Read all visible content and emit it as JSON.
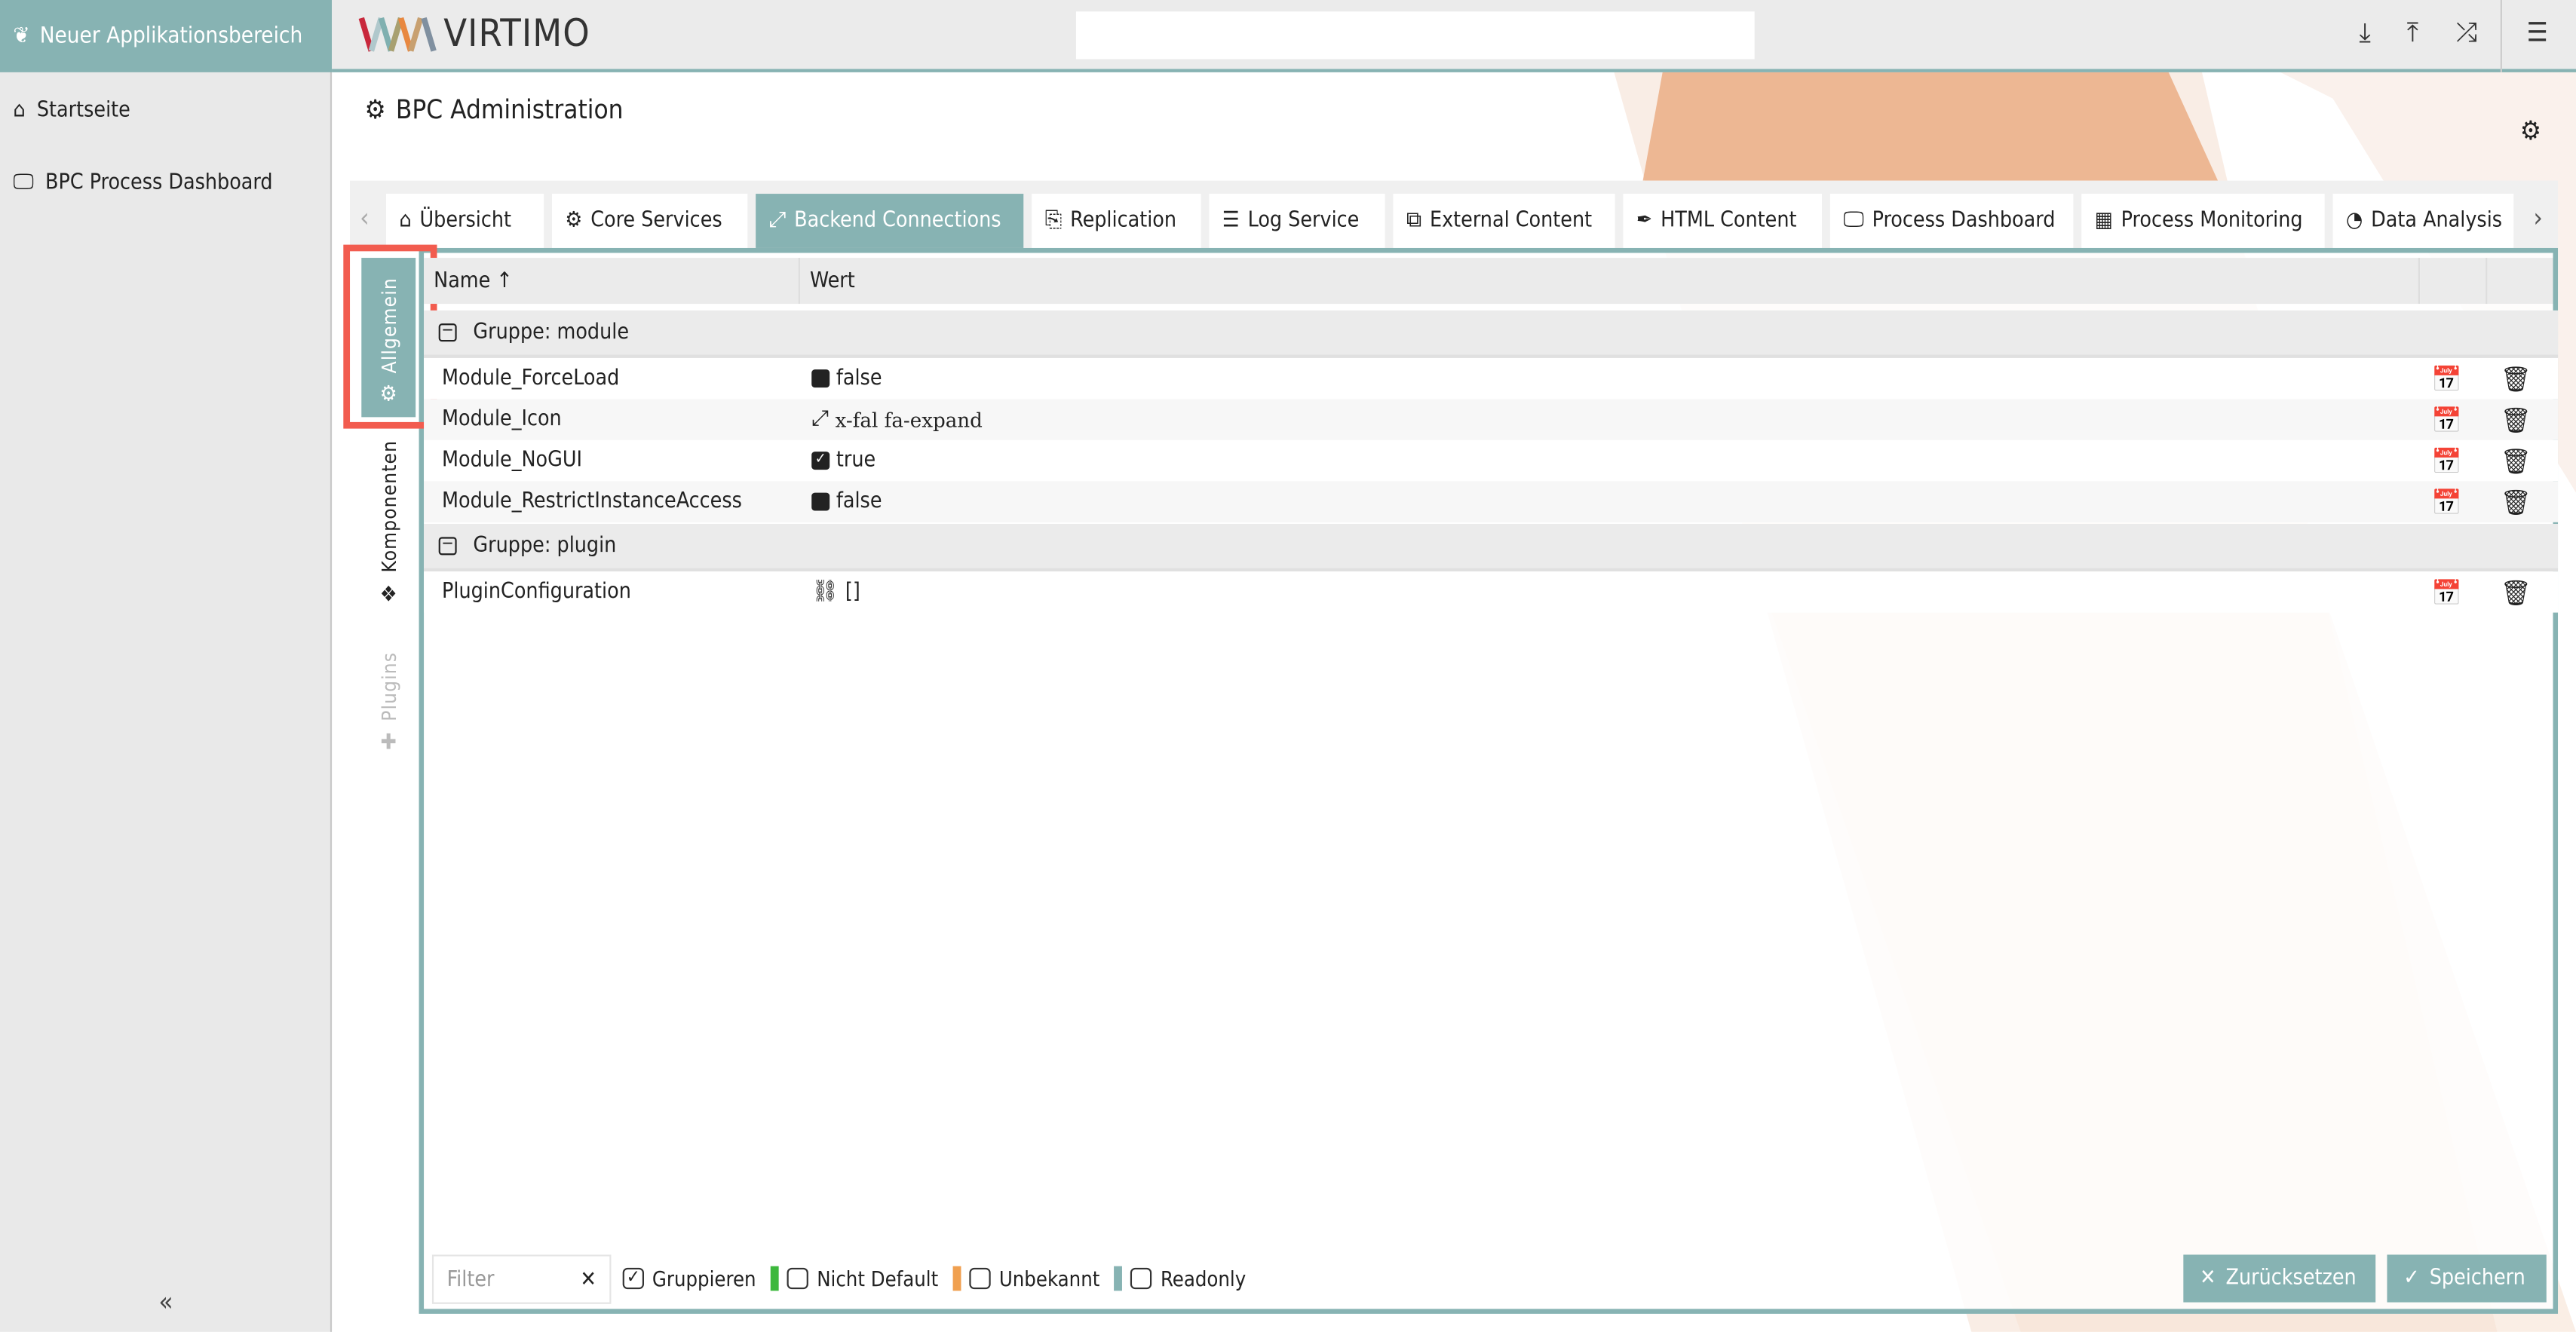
{
  "sidebar": {
    "header": "Neuer Applikationsbereich",
    "items": [
      {
        "label": "Startseite",
        "icon": "home-icon"
      },
      {
        "label": "BPC Process Dashboard",
        "icon": "monitor-icon"
      }
    ],
    "collapse": "«"
  },
  "topbar": {
    "logo": "VIRTIMO",
    "search_value": ""
  },
  "page": {
    "title": "BPC Administration"
  },
  "tabs": [
    {
      "label": "Übersicht",
      "icon": "⌂"
    },
    {
      "label": "Core Services",
      "icon": "⚙"
    },
    {
      "label": "Backend Connections",
      "icon": "⤢",
      "active": true
    },
    {
      "label": "Replication",
      "icon": "⎘"
    },
    {
      "label": "Log Service",
      "icon": "☰"
    },
    {
      "label": "External Content",
      "icon": "⧉"
    },
    {
      "label": "HTML Content",
      "icon": "✒"
    },
    {
      "label": "Process Dashboard",
      "icon": "🖵"
    },
    {
      "label": "Process Monitoring",
      "icon": "▦"
    },
    {
      "label": "Data Analysis",
      "icon": "◔"
    }
  ],
  "vtabs": [
    {
      "label": "Allgemein",
      "active": true
    },
    {
      "label": "Komponenten"
    },
    {
      "label": "Plugins",
      "disabled": true
    }
  ],
  "table": {
    "columns": [
      "Name ↑",
      "Wert"
    ],
    "groups": [
      {
        "label": "Gruppe: module",
        "rows": [
          {
            "name": "Module_ForceLoad",
            "value": "false",
            "type": "bool",
            "checked": false
          },
          {
            "name": "Module_Icon",
            "value": "x-fal fa-expand",
            "type": "icon"
          },
          {
            "name": "Module_NoGUI",
            "value": "true",
            "type": "bool",
            "checked": true
          },
          {
            "name": "Module_RestrictInstanceAccess",
            "value": "false",
            "type": "bool",
            "checked": false
          }
        ]
      },
      {
        "label": "Gruppe: plugin",
        "rows": [
          {
            "name": "PluginConfiguration",
            "value": "[]",
            "type": "tree"
          }
        ]
      }
    ]
  },
  "footer": {
    "filter_placeholder": "Filter",
    "clear": "✕",
    "gruppieren": "Gruppieren",
    "nicht_default": "Nicht Default",
    "unbekannt": "Unbekannt",
    "readonly": "Readonly",
    "reset": "Zurücksetzen",
    "save": "Speichern"
  },
  "colors": {
    "accent": "#87b3b3",
    "nicht_default": "#3cb83c",
    "unbekannt": "#f0a050",
    "readonly": "#87b3b3",
    "highlight": "#f25c4f"
  }
}
